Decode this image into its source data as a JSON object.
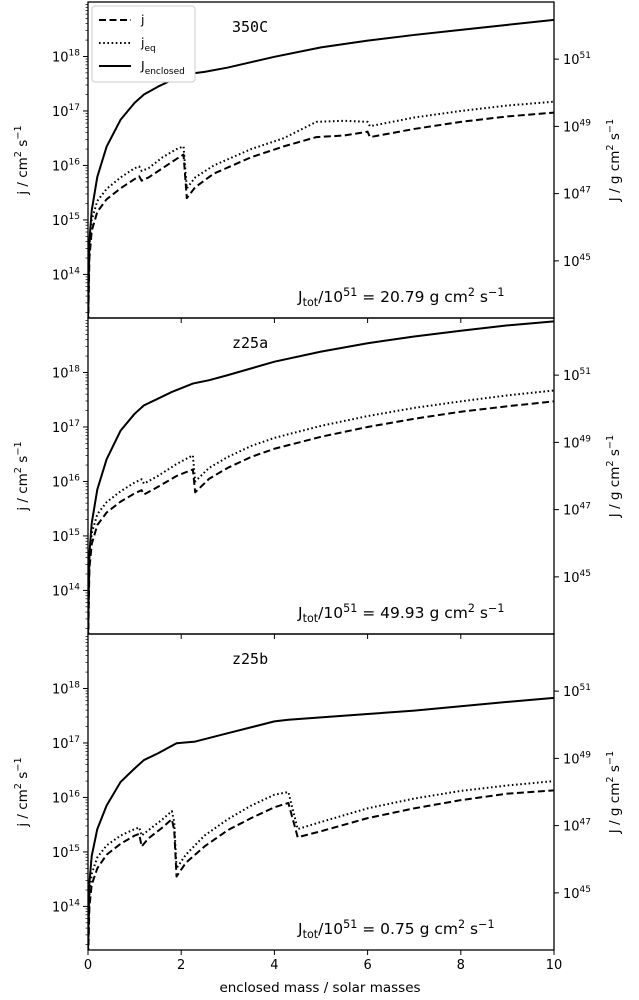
{
  "figure": {
    "xlabel": "enclosed mass / solar masses",
    "ylabel_left": "j / cm2 s−1",
    "ylabel_right": "J / g cm2 s−1"
  },
  "legend": {
    "entries": [
      {
        "label": "j",
        "linestyle": "dashed"
      },
      {
        "label": "jeq",
        "linestyle": "dotted"
      },
      {
        "label": "Jenclosed",
        "linestyle": "solid"
      }
    ]
  },
  "chart_data": [
    {
      "type": "line",
      "title": "350C",
      "annotation": "Jtot/1051 = 20.79 g cm2 s−1",
      "xlabel": "",
      "ylabel": "j / cm2 s−1",
      "ylabel_right": "J / g cm2 s−1",
      "xlim": [
        0,
        10
      ],
      "ylim_log": [
        13.2,
        19.0
      ],
      "y2lim_log": [
        43.3,
        52.7
      ],
      "xticks": [
        0,
        2,
        4,
        6,
        8,
        10
      ],
      "yticks": [
        "10^14",
        "10^15",
        "10^16",
        "10^17",
        "10^18"
      ],
      "y2ticks": [
        "10^45",
        "10^47",
        "10^49",
        "10^51"
      ],
      "x_ticklabels_visible": false,
      "series": [
        {
          "name": "j",
          "axis": "left",
          "style": "dashed",
          "points": [
            [
              0,
              12.9
            ],
            [
              0.03,
              14.3
            ],
            [
              0.08,
              14.8
            ],
            [
              0.2,
              15.15
            ],
            [
              0.4,
              15.38
            ],
            [
              0.7,
              15.58
            ],
            [
              1.0,
              15.75
            ],
            [
              1.1,
              15.8
            ],
            [
              1.15,
              15.72
            ],
            [
              1.3,
              15.78
            ],
            [
              1.6,
              15.95
            ],
            [
              1.9,
              16.12
            ],
            [
              2.05,
              16.2
            ],
            [
              2.12,
              15.4
            ],
            [
              2.3,
              15.6
            ],
            [
              2.7,
              15.85
            ],
            [
              3.5,
              16.15
            ],
            [
              4.2,
              16.35
            ],
            [
              4.9,
              16.52
            ],
            [
              5.5,
              16.55
            ],
            [
              6.0,
              16.62
            ],
            [
              6.05,
              16.52
            ],
            [
              7.0,
              16.67
            ],
            [
              8.0,
              16.8
            ],
            [
              9.0,
              16.9
            ],
            [
              10.0,
              16.97
            ]
          ]
        },
        {
          "name": "jeq",
          "axis": "left",
          "style": "dotted",
          "points": [
            [
              0,
              12.9
            ],
            [
              0.03,
              14.5
            ],
            [
              0.08,
              15.0
            ],
            [
              0.2,
              15.35
            ],
            [
              0.4,
              15.57
            ],
            [
              0.7,
              15.78
            ],
            [
              1.0,
              15.95
            ],
            [
              1.1,
              15.98
            ],
            [
              1.15,
              15.9
            ],
            [
              1.3,
              15.95
            ],
            [
              1.6,
              16.15
            ],
            [
              1.9,
              16.3
            ],
            [
              2.05,
              16.35
            ],
            [
              2.12,
              15.58
            ],
            [
              2.3,
              15.78
            ],
            [
              2.7,
              16.0
            ],
            [
              3.5,
              16.3
            ],
            [
              4.2,
              16.5
            ],
            [
              4.9,
              16.8
            ],
            [
              5.5,
              16.82
            ],
            [
              6.0,
              16.8
            ],
            [
              6.05,
              16.72
            ],
            [
              7.0,
              16.88
            ],
            [
              8.0,
              17.0
            ],
            [
              9.0,
              17.1
            ],
            [
              10.0,
              17.17
            ]
          ]
        },
        {
          "name": "Jenclosed",
          "axis": "right",
          "style": "solid",
          "points": [
            [
              0,
              43.3
            ],
            [
              0.03,
              45.6
            ],
            [
              0.08,
              46.5
            ],
            [
              0.2,
              47.5
            ],
            [
              0.4,
              48.4
            ],
            [
              0.7,
              49.2
            ],
            [
              1.0,
              49.7
            ],
            [
              1.2,
              49.95
            ],
            [
              1.5,
              50.18
            ],
            [
              1.8,
              50.38
            ],
            [
              2.1,
              50.55
            ],
            [
              2.5,
              50.62
            ],
            [
              3.0,
              50.75
            ],
            [
              4.0,
              51.07
            ],
            [
              5.0,
              51.35
            ],
            [
              6.0,
              51.55
            ],
            [
              7.0,
              51.72
            ],
            [
              8.0,
              51.87
            ],
            [
              9.0,
              52.02
            ],
            [
              10.0,
              52.17
            ]
          ]
        }
      ]
    },
    {
      "type": "line",
      "title": "z25a",
      "annotation": "Jtot/1051 = 49.93 g cm2 s−1",
      "xlabel": "",
      "ylabel": "j / cm2 s−1",
      "ylabel_right": "J / g cm2 s−1",
      "xlim": [
        0,
        10
      ],
      "ylim_log": [
        13.2,
        19.0
      ],
      "y2lim_log": [
        43.3,
        52.7
      ],
      "xticks": [
        0,
        2,
        4,
        6,
        8,
        10
      ],
      "yticks": [
        "10^14",
        "10^15",
        "10^16",
        "10^17",
        "10^18"
      ],
      "y2ticks": [
        "10^45",
        "10^47",
        "10^49",
        "10^51"
      ],
      "x_ticklabels_visible": false,
      "series": [
        {
          "name": "j",
          "axis": "left",
          "style": "dashed",
          "points": [
            [
              0,
              12.9
            ],
            [
              0.03,
              14.4
            ],
            [
              0.08,
              14.85
            ],
            [
              0.2,
              15.2
            ],
            [
              0.4,
              15.43
            ],
            [
              0.7,
              15.63
            ],
            [
              1.0,
              15.78
            ],
            [
              1.15,
              15.84
            ],
            [
              1.2,
              15.76
            ],
            [
              1.5,
              15.9
            ],
            [
              1.9,
              16.1
            ],
            [
              2.25,
              16.22
            ],
            [
              2.3,
              15.8
            ],
            [
              2.6,
              16.05
            ],
            [
              3.0,
              16.25
            ],
            [
              3.5,
              16.45
            ],
            [
              4.0,
              16.6
            ],
            [
              5.0,
              16.82
            ],
            [
              6.0,
              17.0
            ],
            [
              7.0,
              17.15
            ],
            [
              8.0,
              17.28
            ],
            [
              9.0,
              17.38
            ],
            [
              10.0,
              17.47
            ]
          ]
        },
        {
          "name": "jeq",
          "axis": "left",
          "style": "dotted",
          "points": [
            [
              0,
              12.9
            ],
            [
              0.03,
              14.6
            ],
            [
              0.08,
              15.05
            ],
            [
              0.2,
              15.4
            ],
            [
              0.4,
              15.62
            ],
            [
              0.7,
              15.82
            ],
            [
              1.0,
              15.98
            ],
            [
              1.15,
              16.04
            ],
            [
              1.2,
              15.96
            ],
            [
              1.5,
              16.1
            ],
            [
              1.9,
              16.32
            ],
            [
              2.25,
              16.48
            ],
            [
              2.3,
              16.0
            ],
            [
              2.6,
              16.25
            ],
            [
              3.0,
              16.45
            ],
            [
              3.5,
              16.65
            ],
            [
              4.0,
              16.8
            ],
            [
              5.0,
              17.02
            ],
            [
              6.0,
              17.2
            ],
            [
              7.0,
              17.35
            ],
            [
              8.0,
              17.47
            ],
            [
              9.0,
              17.58
            ],
            [
              10.0,
              17.67
            ]
          ]
        },
        {
          "name": "Jenclosed",
          "axis": "right",
          "style": "solid",
          "points": [
            [
              0,
              43.3
            ],
            [
              0.03,
              45.7
            ],
            [
              0.08,
              46.6
            ],
            [
              0.2,
              47.6
            ],
            [
              0.4,
              48.5
            ],
            [
              0.7,
              49.35
            ],
            [
              1.0,
              49.85
            ],
            [
              1.2,
              50.1
            ],
            [
              1.5,
              50.3
            ],
            [
              1.8,
              50.5
            ],
            [
              2.25,
              50.75
            ],
            [
              2.6,
              50.85
            ],
            [
              3.0,
              51.0
            ],
            [
              4.0,
              51.4
            ],
            [
              5.0,
              51.7
            ],
            [
              6.0,
              51.95
            ],
            [
              7.0,
              52.15
            ],
            [
              8.0,
              52.32
            ],
            [
              9.0,
              52.48
            ],
            [
              10.0,
              52.6
            ]
          ]
        }
      ]
    },
    {
      "type": "line",
      "title": "z25b",
      "annotation": "Jtot/1051 = 0.75 g cm2 s−1",
      "xlabel": "enclosed mass / solar masses",
      "ylabel": "j / cm2 s−1",
      "ylabel_right": "J / g cm2 s−1",
      "xlim": [
        0,
        10
      ],
      "ylim_log": [
        13.2,
        19.0
      ],
      "y2lim_log": [
        43.3,
        52.7
      ],
      "xticks": [
        0,
        2,
        4,
        6,
        8,
        10
      ],
      "yticks": [
        "10^14",
        "10^15",
        "10^16",
        "10^17",
        "10^18"
      ],
      "y2ticks": [
        "10^45",
        "10^47",
        "10^49",
        "10^51"
      ],
      "x_ticklabels_visible": true,
      "series": [
        {
          "name": "j",
          "axis": "left",
          "style": "dashed",
          "points": [
            [
              0,
              12.9
            ],
            [
              0.03,
              14.0
            ],
            [
              0.08,
              14.4
            ],
            [
              0.2,
              14.7
            ],
            [
              0.4,
              14.95
            ],
            [
              0.7,
              15.15
            ],
            [
              1.0,
              15.3
            ],
            [
              1.1,
              15.33
            ],
            [
              1.15,
              15.1
            ],
            [
              1.3,
              15.25
            ],
            [
              1.6,
              15.45
            ],
            [
              1.8,
              15.6
            ],
            [
              1.85,
              15.4
            ],
            [
              1.9,
              14.55
            ],
            [
              2.1,
              14.8
            ],
            [
              2.5,
              15.1
            ],
            [
              3.0,
              15.4
            ],
            [
              3.5,
              15.62
            ],
            [
              4.0,
              15.82
            ],
            [
              4.3,
              15.9
            ],
            [
              4.5,
              15.27
            ],
            [
              5.0,
              15.38
            ],
            [
              6.0,
              15.62
            ],
            [
              7.0,
              15.8
            ],
            [
              8.0,
              15.95
            ],
            [
              9.0,
              16.07
            ],
            [
              10.0,
              16.13
            ]
          ]
        },
        {
          "name": "jeq",
          "axis": "left",
          "style": "dotted",
          "points": [
            [
              0,
              12.9
            ],
            [
              0.03,
              14.2
            ],
            [
              0.08,
              14.6
            ],
            [
              0.2,
              14.9
            ],
            [
              0.4,
              15.12
            ],
            [
              0.7,
              15.3
            ],
            [
              1.0,
              15.42
            ],
            [
              1.1,
              15.45
            ],
            [
              1.15,
              15.3
            ],
            [
              1.3,
              15.4
            ],
            [
              1.6,
              15.6
            ],
            [
              1.8,
              15.75
            ],
            [
              1.85,
              15.55
            ],
            [
              1.9,
              14.7
            ],
            [
              2.1,
              14.95
            ],
            [
              2.5,
              15.3
            ],
            [
              3.0,
              15.6
            ],
            [
              3.5,
              15.85
            ],
            [
              4.0,
              16.05
            ],
            [
              4.3,
              16.1
            ],
            [
              4.5,
              15.42
            ],
            [
              5.0,
              15.55
            ],
            [
              6.0,
              15.8
            ],
            [
              7.0,
              15.98
            ],
            [
              8.0,
              16.12
            ],
            [
              9.0,
              16.22
            ],
            [
              10.0,
              16.3
            ]
          ]
        },
        {
          "name": "Jenclosed",
          "axis": "right",
          "style": "solid",
          "points": [
            [
              0,
              43.3
            ],
            [
              0.03,
              45.3
            ],
            [
              0.08,
              46.1
            ],
            [
              0.2,
              46.9
            ],
            [
              0.4,
              47.6
            ],
            [
              0.7,
              48.3
            ],
            [
              1.0,
              48.7
            ],
            [
              1.2,
              48.95
            ],
            [
              1.5,
              49.15
            ],
            [
              1.9,
              49.45
            ],
            [
              2.3,
              49.5
            ],
            [
              3.0,
              49.75
            ],
            [
              4.0,
              50.1
            ],
            [
              4.3,
              50.15
            ],
            [
              5.0,
              50.22
            ],
            [
              6.0,
              50.32
            ],
            [
              7.0,
              50.42
            ],
            [
              8.0,
              50.55
            ],
            [
              9.0,
              50.68
            ],
            [
              10.0,
              50.8
            ]
          ]
        }
      ]
    }
  ]
}
